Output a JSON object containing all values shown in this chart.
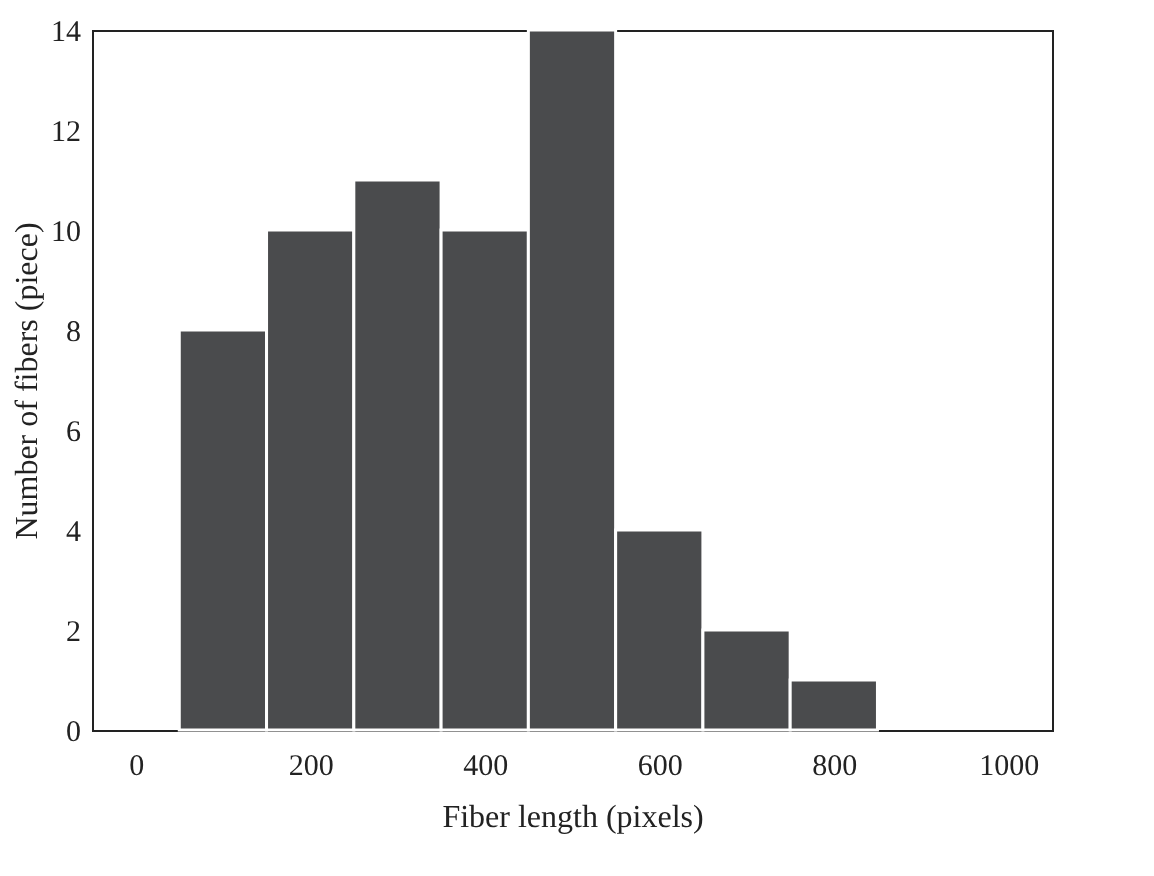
{
  "chart_data": {
    "type": "histogram",
    "xlabel": "Fiber length (pixels)",
    "ylabel": "Number of fibers (piece)",
    "bins": [
      50,
      150,
      250,
      350,
      450,
      550,
      650,
      750,
      850
    ],
    "values": [
      8,
      10,
      11,
      10,
      14,
      4,
      2,
      1
    ],
    "color": "#4a4b4d",
    "xlim": [
      -50,
      1050
    ],
    "xticks": [
      0,
      200,
      400,
      600,
      800,
      1000
    ],
    "ylim": [
      0,
      14
    ],
    "yticks": [
      0,
      2,
      4,
      6,
      8,
      10,
      12,
      14
    ],
    "grid": false
  }
}
